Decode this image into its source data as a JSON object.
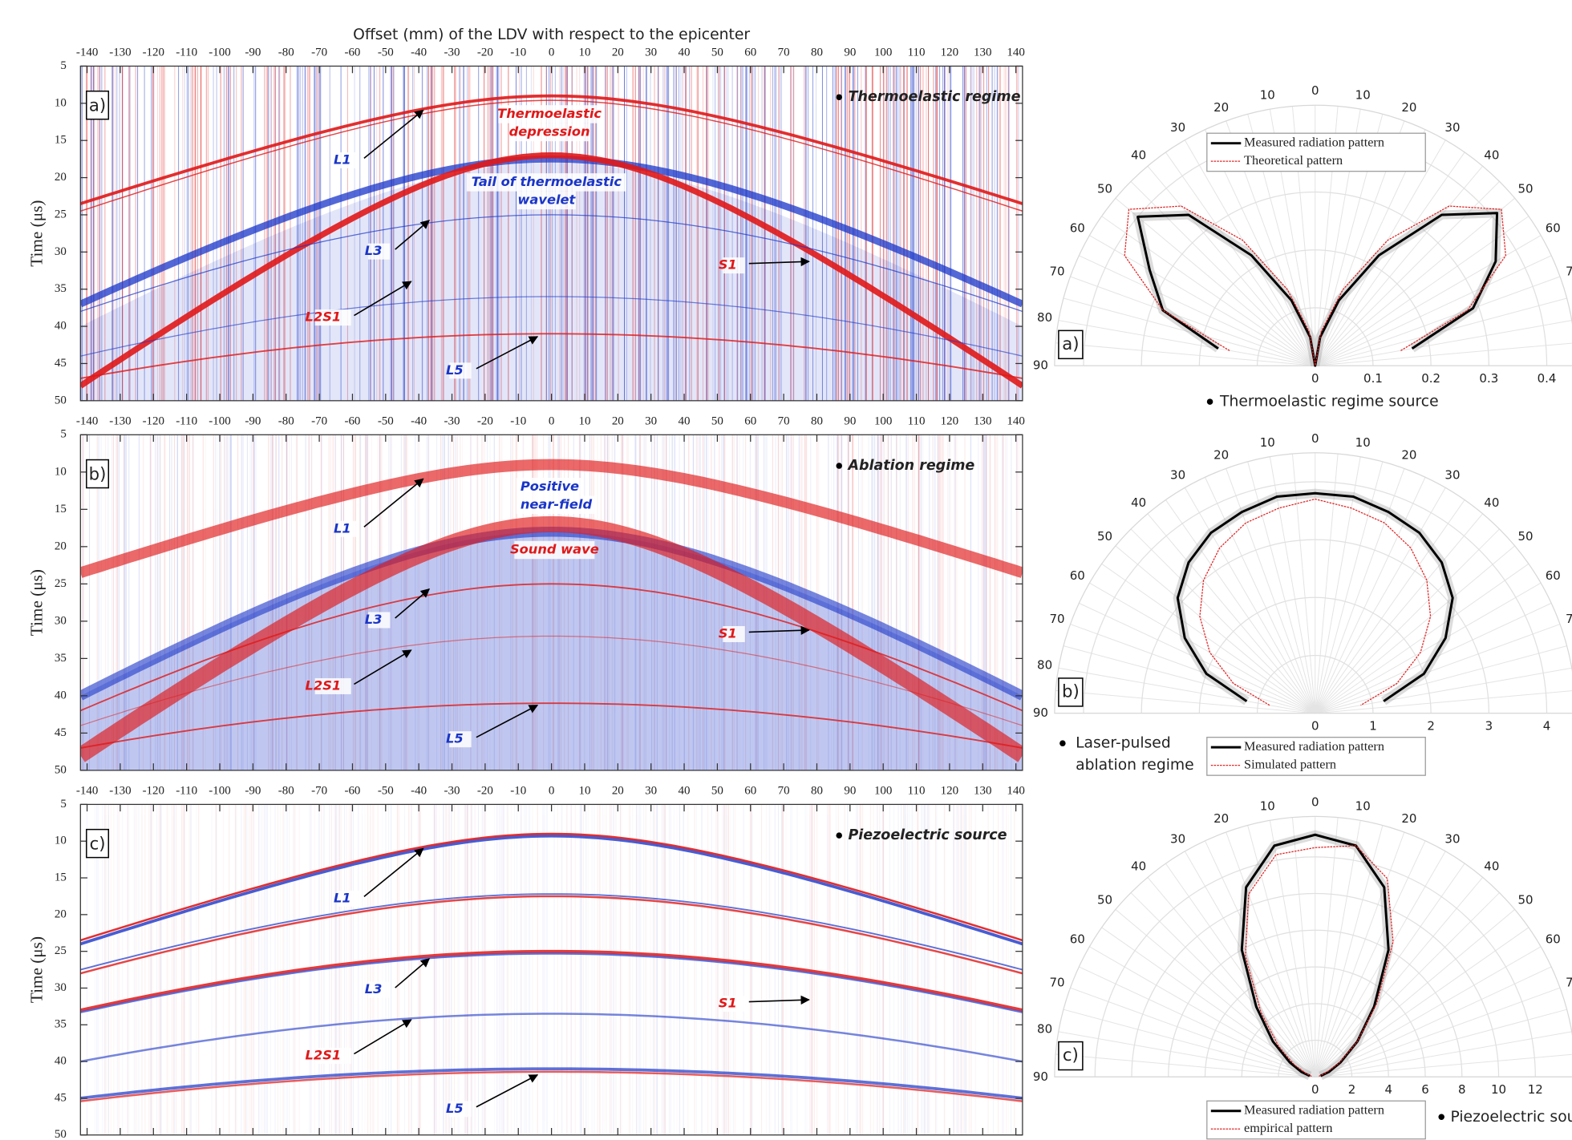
{
  "chart_data": [
    {
      "type": "bscan",
      "panel_label": "a)",
      "title": "Thermoelastic regime",
      "xlabel": "Offset (mm) of the LDV with respect to the epicenter",
      "ylabel": "Time (μs)",
      "xlim": [
        -142,
        142
      ],
      "ylim": [
        5,
        50
      ],
      "y_inverted": true,
      "xticks": [
        -140,
        -130,
        -120,
        -110,
        -100,
        -90,
        -80,
        -70,
        -60,
        -50,
        -40,
        -30,
        -20,
        -10,
        0,
        10,
        20,
        30,
        40,
        50,
        60,
        70,
        80,
        90,
        100,
        110,
        120,
        130,
        140
      ],
      "yticks": [
        5,
        10,
        15,
        20,
        25,
        30,
        35,
        40,
        45,
        50
      ],
      "annotations": [
        {
          "text": "L1",
          "color": "#1a35c8"
        },
        {
          "text": "L3",
          "color": "#1a35c8"
        },
        {
          "text": "L2S1",
          "color": "#e01818"
        },
        {
          "text": "S1",
          "color": "#e01818"
        },
        {
          "text": "L5",
          "color": "#1a35c8"
        },
        {
          "text": [
            "Thermoelastic",
            "depression"
          ],
          "color": "#e01818"
        },
        {
          "text": [
            "Tail of thermoelastic",
            "wavelet"
          ],
          "color": "#1a35c8"
        }
      ]
    },
    {
      "type": "bscan",
      "panel_label": "b)",
      "title": "Ablation regime",
      "ylabel": "Time (μs)",
      "xlim": [
        -142,
        142
      ],
      "ylim": [
        5,
        50
      ],
      "y_inverted": true,
      "xticks": [
        -140,
        -130,
        -120,
        -110,
        -100,
        -90,
        -80,
        -70,
        -60,
        -50,
        -40,
        -30,
        -20,
        -10,
        0,
        10,
        20,
        30,
        40,
        50,
        60,
        70,
        80,
        90,
        100,
        110,
        120,
        130,
        140
      ],
      "yticks": [
        5,
        10,
        15,
        20,
        25,
        30,
        35,
        40,
        45,
        50
      ],
      "annotations": [
        {
          "text": "L1",
          "color": "#1a35c8"
        },
        {
          "text": "L3",
          "color": "#1a35c8"
        },
        {
          "text": "L2S1",
          "color": "#e01818"
        },
        {
          "text": "S1",
          "color": "#e01818"
        },
        {
          "text": "L5",
          "color": "#1a35c8"
        },
        {
          "text": [
            "Positive",
            "near-field"
          ],
          "color": "#1a35c8"
        },
        {
          "text": "Sound wave",
          "color": "#e01818"
        }
      ]
    },
    {
      "type": "bscan",
      "panel_label": "c)",
      "title": "Piezoelectric source",
      "ylabel": "Time (μs)",
      "xlim": [
        -142,
        142
      ],
      "ylim": [
        5,
        50
      ],
      "y_inverted": true,
      "xticks": [
        -140,
        -130,
        -120,
        -110,
        -100,
        -90,
        -80,
        -70,
        -60,
        -50,
        -40,
        -30,
        -20,
        -10,
        0,
        10,
        20,
        30,
        40,
        50,
        60,
        70,
        80,
        90,
        100,
        110,
        120,
        130,
        140
      ],
      "yticks": [
        5,
        10,
        15,
        20,
        25,
        30,
        35,
        40,
        45,
        50
      ],
      "annotations": [
        {
          "text": "L1",
          "color": "#1a35c8"
        },
        {
          "text": "L3",
          "color": "#1a35c8"
        },
        {
          "text": "L2S1",
          "color": "#e01818"
        },
        {
          "text": "S1",
          "color": "#e01818"
        },
        {
          "text": "L5",
          "color": "#1a35c8"
        }
      ]
    },
    {
      "type": "polar",
      "panel_label": "a)",
      "caption": "Thermoelastic regime source",
      "legend": "upper center",
      "rlim": [
        0,
        0.45
      ],
      "rticks": [
        0,
        0.1,
        0.2,
        0.3,
        0.4
      ],
      "thetaticks": [
        {
          "value": -90,
          "label": "90"
        },
        {
          "value": -80,
          "label": "80"
        },
        {
          "value": -70,
          "label": "70"
        },
        {
          "value": -60,
          "label": "60"
        },
        {
          "value": -50,
          "label": "50"
        },
        {
          "value": -40,
          "label": "40"
        },
        {
          "value": -30,
          "label": "30"
        },
        {
          "value": -20,
          "label": "20"
        },
        {
          "value": -10,
          "label": "10"
        },
        0,
        10,
        20,
        30,
        40,
        50,
        60,
        70,
        80,
        90
      ],
      "x": [
        -80,
        -70,
        -60,
        -50,
        -40,
        -30,
        -20,
        -10,
        0,
        10,
        20,
        30,
        40,
        50,
        60,
        70,
        80
      ],
      "series": [
        {
          "name": "Measured radiation pattern",
          "color": "#000000",
          "values": [
            0.17,
            0.28,
            0.33,
            0.4,
            0.34,
            0.22,
            0.12,
            0.05,
            0,
            0.05,
            0.12,
            0.22,
            0.34,
            0.41,
            0.36,
            0.29,
            0.17
          ]
        },
        {
          "name": "Theoretical pattern",
          "color": "#e02020",
          "values": [
            0.15,
            0.28,
            0.38,
            0.42,
            0.36,
            0.25,
            0.14,
            0.06,
            0,
            0.06,
            0.14,
            0.25,
            0.36,
            0.42,
            0.38,
            0.28,
            0.15
          ]
        }
      ]
    },
    {
      "type": "polar",
      "panel_label": "b)",
      "caption": [
        "Laser-pulsed",
        "ablation regime"
      ],
      "legend": "lower center",
      "rlim": [
        0,
        4.5
      ],
      "rticks": [
        0,
        1,
        2,
        3,
        4
      ],
      "thetaticks": [
        {
          "value": -90,
          "label": "90"
        },
        {
          "value": -80,
          "label": "80"
        },
        {
          "value": -70,
          "label": "70"
        },
        {
          "value": -60,
          "label": "60"
        },
        {
          "value": -50,
          "label": "50"
        },
        {
          "value": -40,
          "label": "40"
        },
        {
          "value": -30,
          "label": "30"
        },
        {
          "value": -20,
          "label": "20"
        },
        {
          "value": -10,
          "label": "10"
        },
        0,
        10,
        20,
        30,
        40,
        50,
        60,
        70,
        80,
        90
      ],
      "x": [
        -80,
        -70,
        -60,
        -50,
        -40,
        -30,
        -20,
        -10,
        0,
        10,
        20,
        30,
        40,
        50,
        60,
        70,
        80
      ],
      "series": [
        {
          "name": "Measured radiation pattern",
          "color": "#000000",
          "values": [
            1.2,
            2.0,
            2.6,
            3.1,
            3.4,
            3.6,
            3.7,
            3.8,
            3.8,
            3.8,
            3.7,
            3.6,
            3.4,
            3.1,
            2.6,
            2.0,
            1.2
          ]
        },
        {
          "name": "Simulated pattern",
          "color": "#e02020",
          "values": [
            0.8,
            1.5,
            2.1,
            2.6,
            3.0,
            3.3,
            3.5,
            3.6,
            3.7,
            3.6,
            3.5,
            3.3,
            3.0,
            2.6,
            2.1,
            1.5,
            0.8
          ]
        }
      ]
    },
    {
      "type": "polar",
      "panel_label": "c)",
      "caption": "Piezoelectric source",
      "legend": "lower center",
      "rlim": [
        0,
        14.2
      ],
      "rticks": [
        0,
        2,
        4,
        6,
        8,
        10,
        12
      ],
      "thetaticks": [
        {
          "value": -90,
          "label": "90"
        },
        {
          "value": -80,
          "label": "80"
        },
        {
          "value": -70,
          "label": "70"
        },
        {
          "value": -60,
          "label": "60"
        },
        {
          "value": -50,
          "label": "50"
        },
        {
          "value": -40,
          "label": "40"
        },
        {
          "value": -30,
          "label": "30"
        },
        {
          "value": -20,
          "label": "20"
        },
        {
          "value": -10,
          "label": "10"
        },
        0,
        10,
        20,
        30,
        40,
        50,
        60,
        70,
        80,
        90
      ],
      "x": [
        -80,
        -70,
        -60,
        -50,
        -40,
        -30,
        -20,
        -10,
        0,
        10,
        20,
        30,
        40,
        50,
        60,
        70,
        80
      ],
      "series": [
        {
          "name": "Measured radiation pattern",
          "color": "#000000",
          "values": [
            0.3,
            0.8,
            1.6,
            3,
            5,
            8,
            11,
            12.8,
            13.2,
            12.8,
            11,
            8,
            5,
            3,
            1.6,
            0.8,
            0.3
          ]
        },
        {
          "name": "empirical pattern",
          "color": "#e02020",
          "values": [
            0.2,
            0.5,
            1.3,
            2.6,
            4.6,
            7.6,
            10.6,
            12.3,
            12.5,
            12.8,
            11.5,
            8.5,
            5.2,
            3,
            1.5,
            0.6,
            0.2
          ]
        }
      ]
    }
  ]
}
